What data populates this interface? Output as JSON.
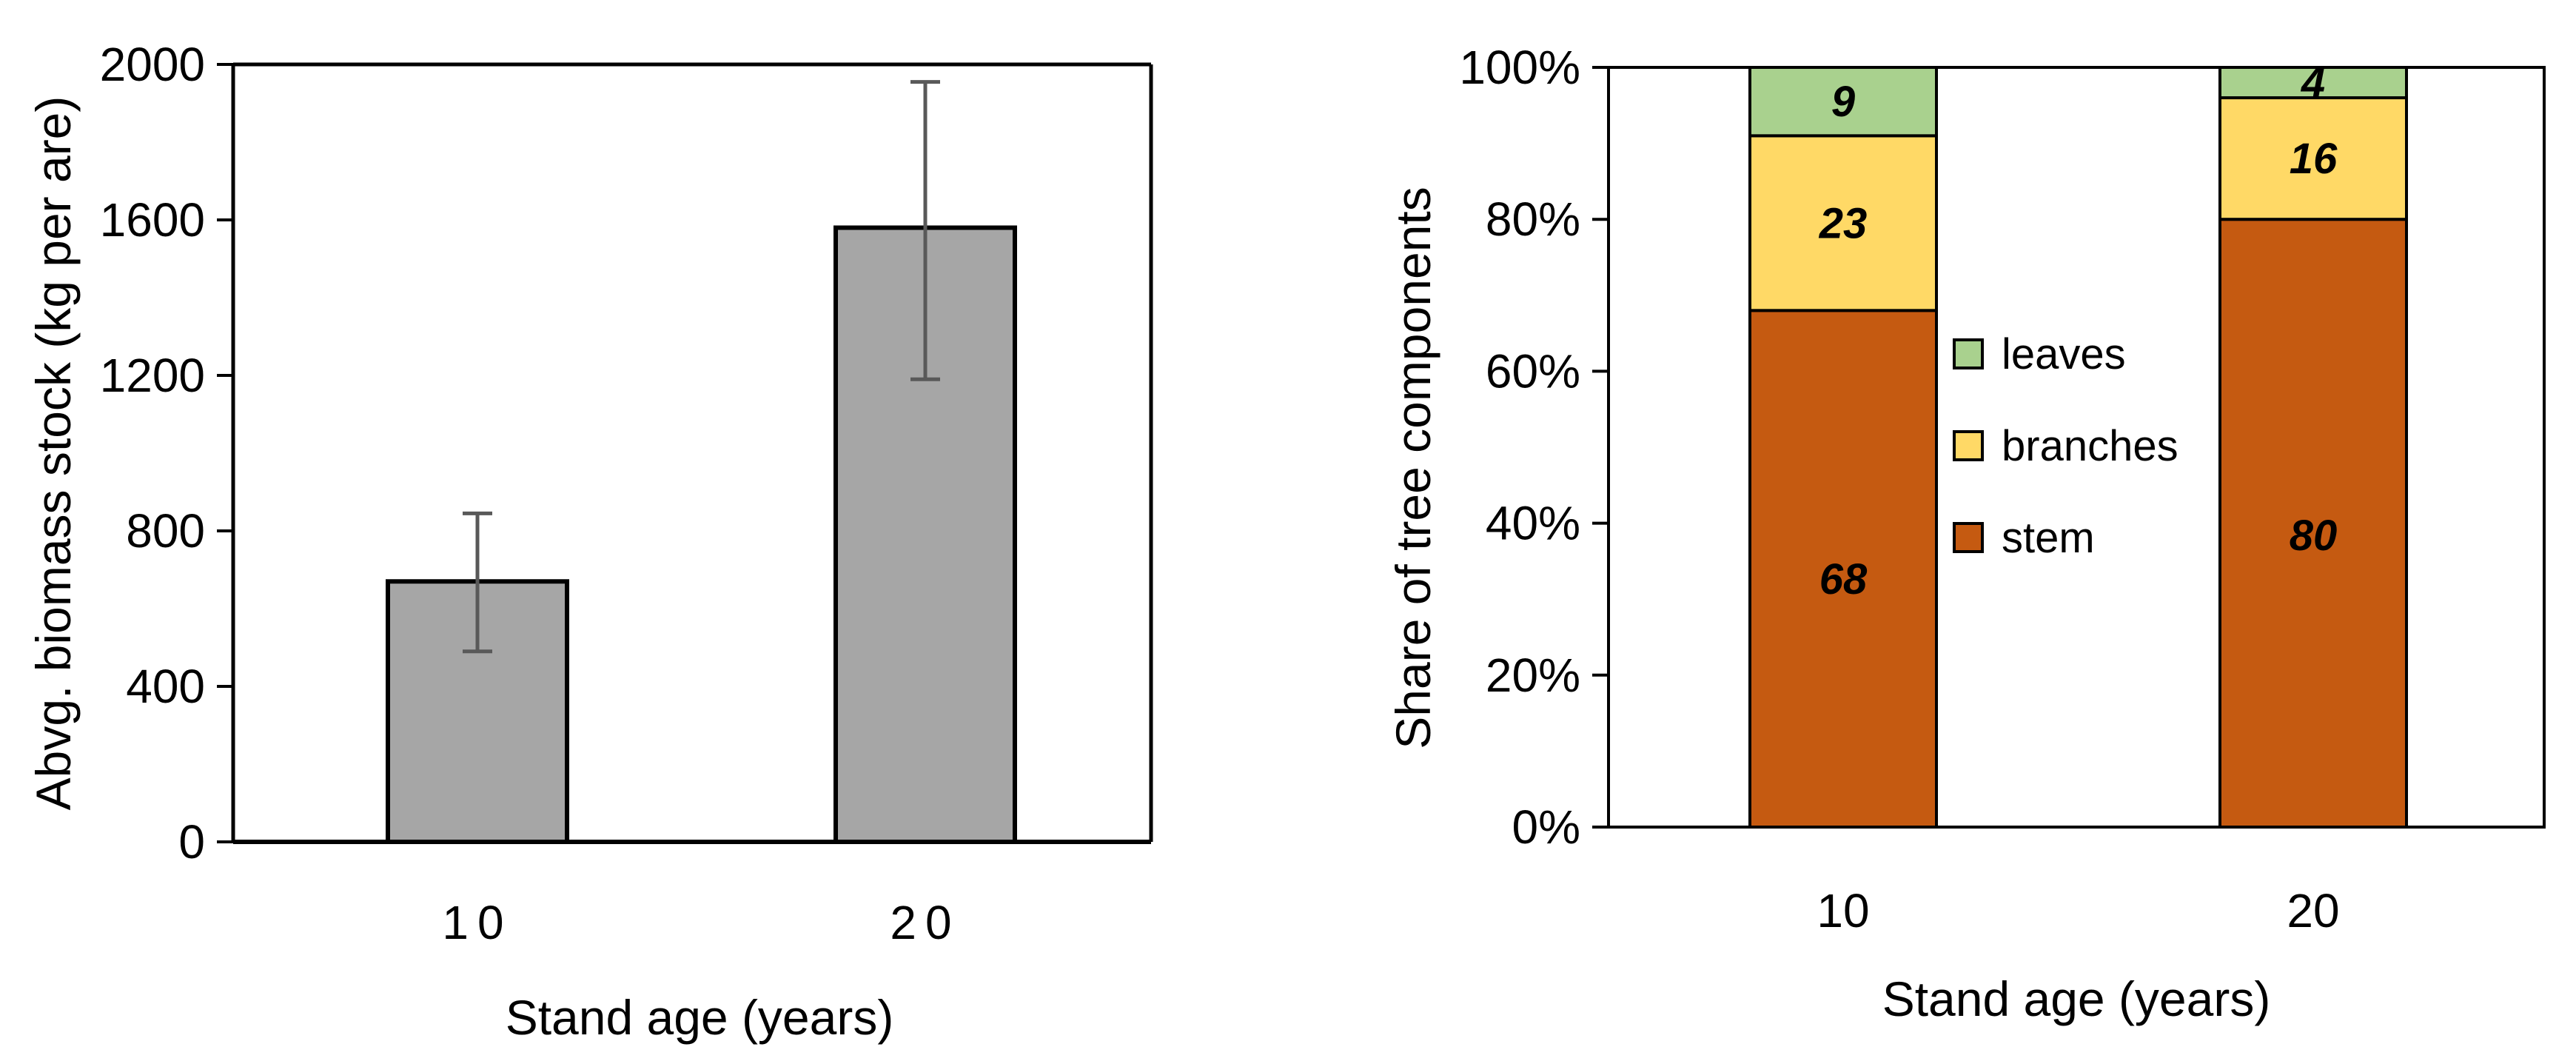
{
  "chart_data": [
    {
      "type": "bar",
      "categories": [
        "10",
        "20"
      ],
      "values": [
        670,
        1580
      ],
      "error_low": [
        490,
        1190
      ],
      "error_high": [
        845,
        1955
      ],
      "xlabel": "Stand age (years)",
      "ylabel": "Abvg. biomass stock (kg  per are)",
      "ylim": [
        0,
        2000
      ],
      "yticks": [
        "0",
        "400",
        "800",
        "1200",
        "1600",
        "2000"
      ],
      "grid": false,
      "colors": {
        "bar": "#a6a6a6",
        "error": "#595959"
      }
    },
    {
      "type": "bar",
      "stacked": true,
      "categories": [
        "10",
        "20"
      ],
      "series": [
        {
          "name": "stem",
          "values": [
            68,
            80
          ],
          "labels": [
            "68",
            "80"
          ],
          "color": "#c55a11"
        },
        {
          "name": "branches",
          "values": [
            23,
            16
          ],
          "labels": [
            "23",
            "16"
          ],
          "color": "#ffd966"
        },
        {
          "name": "leaves",
          "values": [
            9,
            4
          ],
          "labels": [
            "9",
            "4"
          ],
          "color": "#a9d18e"
        }
      ],
      "xlabel": "Stand age (years)",
      "ylabel": "Share of tree components",
      "ylim": [
        0,
        100
      ],
      "yticks": [
        "0%",
        "20%",
        "40%",
        "60%",
        "80%",
        "100%"
      ],
      "legend": {
        "position": "center",
        "entries": [
          "leaves",
          "branches",
          "stem"
        ]
      },
      "grid": false
    }
  ]
}
